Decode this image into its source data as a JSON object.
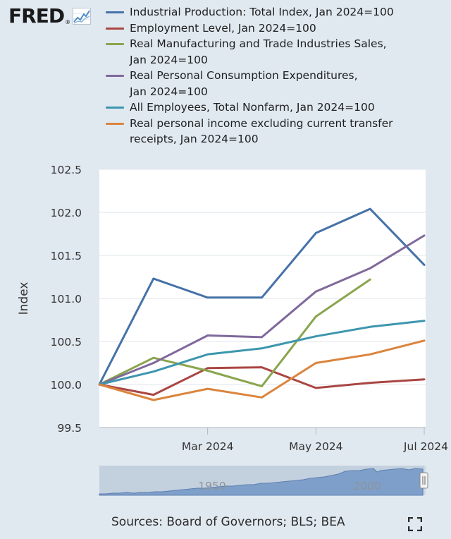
{
  "header": {
    "logo_text": "FRED",
    "logo_mark": "®",
    "logo_icon": "trend-graph-icon"
  },
  "legend": [
    {
      "line1": "Industrial Production: Total Index, Jan 2024=100",
      "line2": "",
      "color": "#4572a7"
    },
    {
      "line1": "Employment Level, Jan 2024=100",
      "line2": "",
      "color": "#aa4643"
    },
    {
      "line1": "Real Manufacturing and Trade Industries Sales,",
      "line2": "Jan 2024=100",
      "color": "#89a54e"
    },
    {
      "line1": "Real Personal Consumption Expenditures,",
      "line2": "Jan 2024=100",
      "color": "#80699b"
    },
    {
      "line1": "All Employees, Total Nonfarm, Jan 2024=100",
      "line2": "",
      "color": "#3d96ae"
    },
    {
      "line1": "Real personal income excluding current transfer",
      "line2": "receipts, Jan 2024=100",
      "color": "#db843d"
    }
  ],
  "chart_data": {
    "type": "line",
    "x": [
      "2024-01",
      "2024-02",
      "2024-03",
      "2024-04",
      "2024-05",
      "2024-06",
      "2024-07"
    ],
    "xticks": [
      "Mar 2024",
      "May 2024",
      "Jul 2024"
    ],
    "ylabel": "Index",
    "yticks": [
      "99.5",
      "100.0",
      "100.5",
      "101.0",
      "101.5",
      "102.0",
      "102.5"
    ],
    "ylim": [
      99.5,
      102.5
    ],
    "grid": true,
    "series": [
      {
        "name": "Industrial Production: Total Index, Jan 2024=100",
        "color": "#4572a7",
        "values": [
          100.0,
          101.23,
          101.01,
          101.01,
          101.76,
          102.04,
          101.39
        ]
      },
      {
        "name": "Employment Level, Jan 2024=100",
        "color": "#aa4643",
        "values": [
          100.0,
          99.88,
          100.19,
          100.2,
          99.96,
          100.02,
          100.06
        ]
      },
      {
        "name": "Real Manufacturing and Trade Industries Sales, Jan 2024=100",
        "color": "#89a54e",
        "values": [
          100.0,
          100.31,
          100.16,
          99.98,
          100.79,
          101.22,
          null
        ]
      },
      {
        "name": "Real Personal Consumption Expenditures, Jan 2024=100",
        "color": "#80699b",
        "values": [
          100.0,
          100.25,
          100.57,
          100.55,
          101.08,
          101.35,
          101.73
        ]
      },
      {
        "name": "All Employees, Total Nonfarm, Jan 2024=100",
        "color": "#3d96ae",
        "values": [
          100.0,
          100.15,
          100.35,
          100.42,
          100.56,
          100.67,
          100.74
        ]
      },
      {
        "name": "Real personal income excluding current transfer receipts, Jan 2024=100",
        "color": "#db843d",
        "values": [
          100.0,
          99.82,
          99.95,
          99.85,
          100.25,
          100.35,
          100.51
        ]
      }
    ]
  },
  "navigator": {
    "labels": [
      "1950",
      "2000"
    ]
  },
  "footer": {
    "sources": "Sources: Board of Governors; BLS; BEA",
    "fullscreen_icon": "fullscreen-icon"
  }
}
